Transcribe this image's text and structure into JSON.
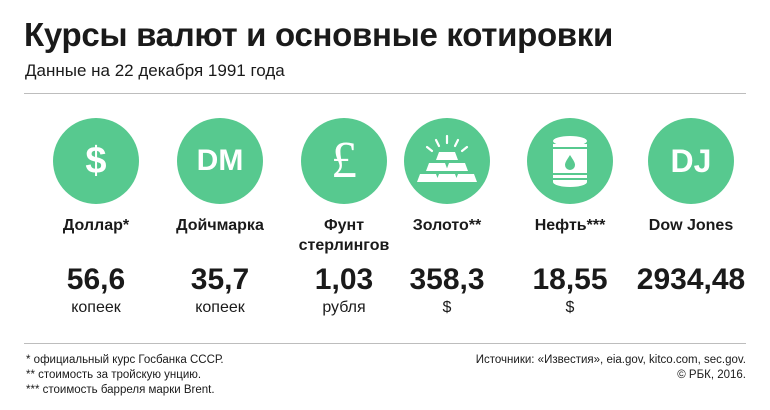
{
  "header": {
    "title": "Курсы валют и основные котировки",
    "subtitle": "Данные на 22 декабря 1991 года"
  },
  "colors": {
    "circle": "#57c98f",
    "text": "#1a1a1a",
    "rule": "#bdbdbd"
  },
  "items": [
    {
      "icon": "dollar-icon",
      "glyph": "$",
      "label": "Доллар*",
      "value": "56,6",
      "unit": "копеек"
    },
    {
      "icon": "deutsche-mark-icon",
      "glyph": "DM",
      "label": "Дойчмарка",
      "value": "35,7",
      "unit": "копеек"
    },
    {
      "icon": "pound-sterling-icon",
      "glyph": "£",
      "label": "Фунт стерлингов",
      "value": "1,03",
      "unit": "рубля"
    },
    {
      "icon": "gold-bars-icon",
      "label": "Золото**",
      "value": "358,3",
      "unit": "$"
    },
    {
      "icon": "oil-barrel-icon",
      "label": "Нефть***",
      "value": "18,55",
      "unit": "$"
    },
    {
      "icon": "dow-jones-icon",
      "glyph": "DJ",
      "label": "Dow Jones",
      "value": "2934,48",
      "unit": ""
    }
  ],
  "footnotes": [
    "* официальный курс Госбанка СССР.",
    "** стоимость за тройскую унцию.",
    "*** стоимость барреля марки Brent."
  ],
  "sources": [
    "Источники: «Известия», eia.gov, kitco.com, sec.gov.",
    "© РБК, 2016."
  ]
}
